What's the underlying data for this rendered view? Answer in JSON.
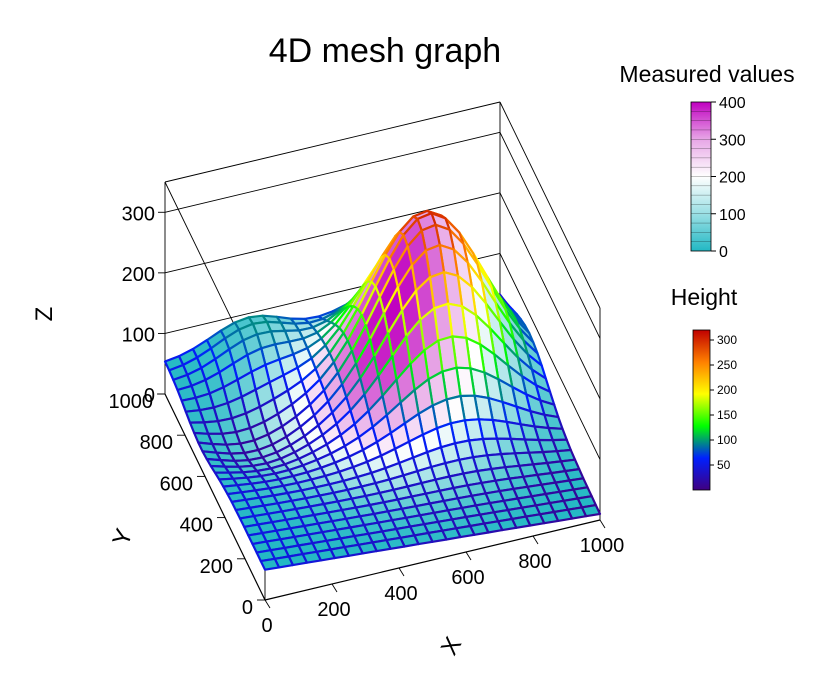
{
  "chart_data": {
    "type": "surface-mesh",
    "title": "4D mesh graph",
    "xlabel": "X",
    "ylabel": "Y",
    "zlabel": "Z",
    "xlim": [
      0,
      1000
    ],
    "ylim": [
      0,
      1000
    ],
    "zlim": [
      0,
      350
    ],
    "x_ticks": [
      "0",
      "200",
      "400",
      "600",
      "800",
      "1000"
    ],
    "y_ticks": [
      "0",
      "200",
      "400",
      "600",
      "800",
      "1000"
    ],
    "z_ticks": [
      "0",
      "100",
      "200",
      "300"
    ],
    "surface_peak": {
      "x": 700,
      "y": 700,
      "z": 305
    },
    "surface_corners": {
      "x0_y0": 50,
      "x1000_y0": 10,
      "x0_y1000": 50,
      "x1000_y1000": 20
    },
    "grid": true,
    "fill_colorbar": {
      "title": "Measured values",
      "ticks": [
        "0",
        "100",
        "200",
        "300",
        "400"
      ],
      "min": 0,
      "max": 400,
      "colors": [
        "#22b8c4",
        "#9adfe4",
        "#ffffff",
        "#e7a6e6",
        "#c000c0"
      ]
    },
    "mesh_colorbar": {
      "title": "Height",
      "ticks": [
        "50",
        "100",
        "150",
        "200",
        "250",
        "300"
      ],
      "min": 0,
      "max": 320,
      "colors": [
        "#400080",
        "#0020ff",
        "#00ff00",
        "#ffff00",
        "#ff8000",
        "#c00000"
      ]
    },
    "legend_placement": "right"
  }
}
